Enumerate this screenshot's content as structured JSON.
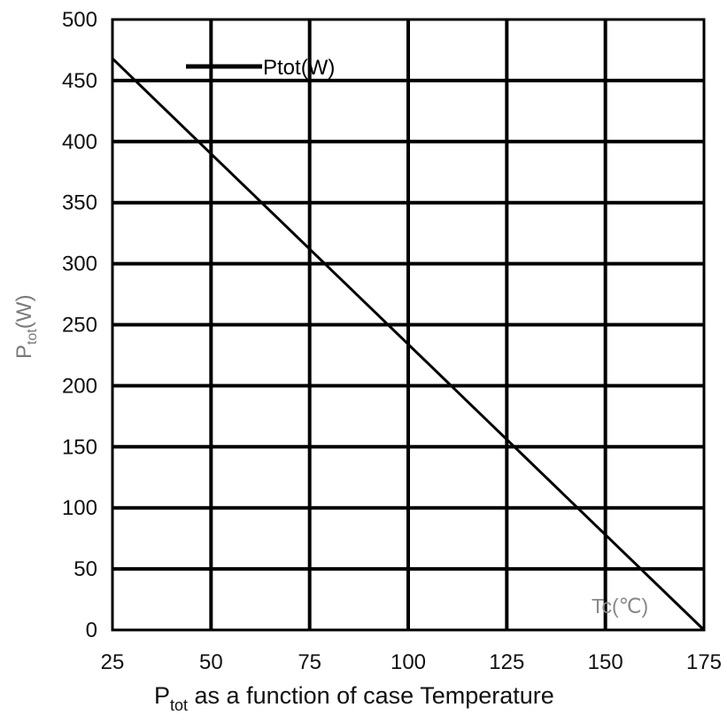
{
  "chart_data": {
    "type": "line",
    "title": "",
    "caption": {
      "main": "P",
      "sub": "tot",
      "rest": " as a function of case Temperature"
    },
    "ylabel": {
      "main": "P",
      "sub": "tot",
      "rest": "(W)"
    },
    "xlabel": "Tc(℃)",
    "xlim": [
      25,
      175
    ],
    "ylim": [
      0,
      500
    ],
    "x_ticks": [
      25,
      50,
      75,
      100,
      125,
      150,
      175
    ],
    "y_ticks": [
      0,
      50,
      100,
      150,
      200,
      250,
      300,
      350,
      400,
      450,
      500
    ],
    "grid": true,
    "legend": "top-left",
    "series": [
      {
        "name": "Ptot(W)",
        "color": "#000000",
        "x": [
          25,
          175
        ],
        "y": [
          468,
          0
        ]
      }
    ]
  }
}
